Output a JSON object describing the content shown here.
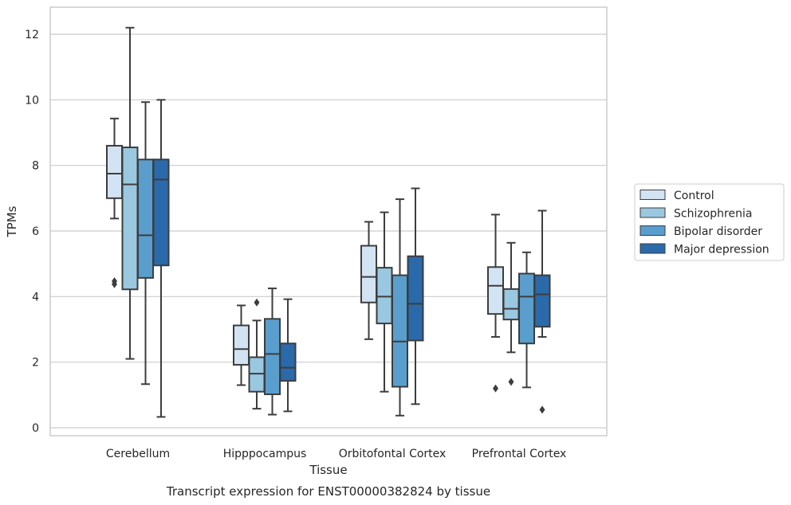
{
  "chart_data": {
    "type": "box",
    "title": "",
    "caption": "Transcript expression for ENST00000382824 by tissue",
    "xlabel": "Tissue",
    "ylabel": "TPMs",
    "ylim": [
      -0.25,
      12.8
    ],
    "yticks": [
      0,
      2,
      4,
      6,
      8,
      10,
      12
    ],
    "grid": true,
    "legend_position": "right",
    "categories": [
      "Cerebellum",
      "Hipppocampus",
      "Orbitofontal Cortex",
      "Prefrontal Cortex"
    ],
    "series": [
      {
        "name": "Control",
        "color": "#d2e3f3",
        "boxes": [
          {
            "whislo": 6.38,
            "q1": 7.0,
            "med": 7.75,
            "q3": 8.6,
            "whishi": 9.43,
            "fliers": [
              4.38,
              4.47
            ]
          },
          {
            "whislo": 1.3,
            "q1": 1.92,
            "med": 2.4,
            "q3": 3.12,
            "whishi": 3.73,
            "fliers": []
          },
          {
            "whislo": 2.7,
            "q1": 3.82,
            "med": 4.6,
            "q3": 5.55,
            "whishi": 6.28,
            "fliers": []
          },
          {
            "whislo": 2.77,
            "q1": 3.47,
            "med": 4.33,
            "q3": 4.9,
            "whishi": 6.5,
            "fliers": [
              1.2
            ]
          }
        ]
      },
      {
        "name": "Schizophrenia",
        "color": "#9ac8e0",
        "boxes": [
          {
            "whislo": 2.1,
            "q1": 4.22,
            "med": 7.42,
            "q3": 8.55,
            "whishi": 12.2,
            "fliers": []
          },
          {
            "whislo": 0.58,
            "q1": 1.1,
            "med": 1.65,
            "q3": 2.15,
            "whishi": 3.27,
            "fliers": [
              3.82
            ]
          },
          {
            "whislo": 1.1,
            "q1": 3.18,
            "med": 4.0,
            "q3": 4.88,
            "whishi": 6.57,
            "fliers": []
          },
          {
            "whislo": 2.3,
            "q1": 3.3,
            "med": 3.63,
            "q3": 4.23,
            "whishi": 5.64,
            "fliers": [
              1.4
            ]
          }
        ]
      },
      {
        "name": "Bipolar disorder",
        "color": "#5a9ecd",
        "boxes": [
          {
            "whislo": 1.33,
            "q1": 4.57,
            "med": 5.87,
            "q3": 8.18,
            "whishi": 9.93,
            "fliers": []
          },
          {
            "whislo": 0.4,
            "q1": 1.02,
            "med": 2.25,
            "q3": 3.32,
            "whishi": 4.25,
            "fliers": []
          },
          {
            "whislo": 0.37,
            "q1": 1.25,
            "med": 2.63,
            "q3": 4.65,
            "whishi": 6.97,
            "fliers": []
          },
          {
            "whislo": 1.23,
            "q1": 2.57,
            "med": 4.0,
            "q3": 4.7,
            "whishi": 5.35,
            "fliers": []
          }
        ]
      },
      {
        "name": "Major depression",
        "color": "#2a6aaa",
        "boxes": [
          {
            "whislo": 0.33,
            "q1": 4.95,
            "med": 7.57,
            "q3": 8.18,
            "whishi": 10.0,
            "fliers": []
          },
          {
            "whislo": 0.5,
            "q1": 1.43,
            "med": 1.83,
            "q3": 2.57,
            "whishi": 3.92,
            "fliers": []
          },
          {
            "whislo": 0.72,
            "q1": 2.66,
            "med": 3.78,
            "q3": 5.23,
            "whishi": 7.3,
            "fliers": []
          },
          {
            "whislo": 2.77,
            "q1": 3.08,
            "med": 4.07,
            "q3": 4.65,
            "whishi": 6.62,
            "fliers": [
              0.55
            ]
          }
        ]
      }
    ]
  }
}
